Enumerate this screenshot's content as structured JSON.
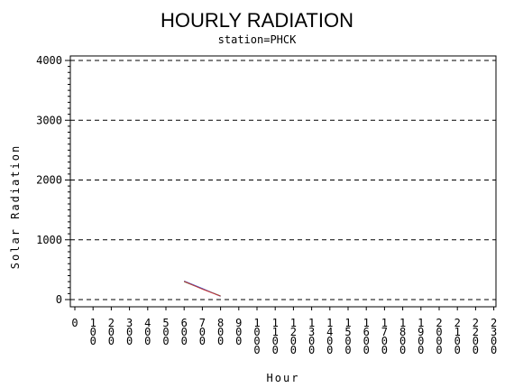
{
  "chart_data": {
    "type": "line",
    "title": "HOURLY RADIATION",
    "subtitle": "station=PHCK",
    "xlabel": "Hour",
    "ylabel": "Solar Radiation",
    "ylim": [
      0,
      4000
    ],
    "yticks": [
      0,
      1000,
      2000,
      3000,
      4000
    ],
    "y_gridlines": "dashed",
    "xticks": [
      "0",
      "100",
      "200",
      "300",
      "400",
      "500",
      "600",
      "700",
      "800",
      "900",
      "1000",
      "1100",
      "1200",
      "1300",
      "1400",
      "1500",
      "1600",
      "1700",
      "1800",
      "1900",
      "2000",
      "2100",
      "2200",
      "2300"
    ],
    "series": [
      {
        "x": [
          600,
          700,
          800
        ],
        "values": [
          300,
          180,
          60
        ],
        "color": "#2e7d32"
      },
      {
        "x": [
          600,
          700,
          800
        ],
        "values": [
          310,
          185,
          55
        ],
        "color": "#3355cc"
      },
      {
        "x": [
          600,
          700,
          800
        ],
        "values": [
          305,
          175,
          58
        ],
        "color": "#cc3333"
      }
    ]
  }
}
